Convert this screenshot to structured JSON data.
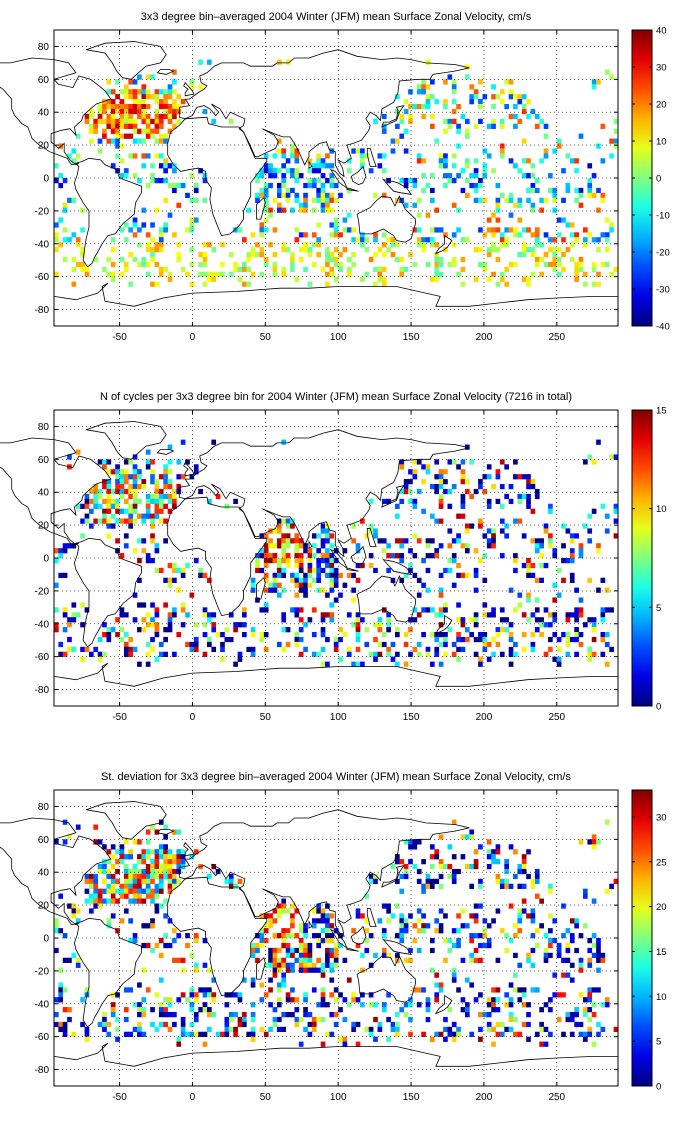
{
  "chart_data": [
    {
      "type": "heatmap",
      "title": "3x3 degree bin–averaged 2004 Winter (JFM) mean Surface Zonal Velocity, cm/s",
      "xlabel": "",
      "ylabel": "",
      "xlim": [
        -95,
        292
      ],
      "ylim": [
        -90,
        90
      ],
      "x_ticks": [
        -50,
        0,
        50,
        100,
        150,
        200,
        250
      ],
      "y_ticks": [
        -80,
        -60,
        -40,
        -20,
        0,
        20,
        40,
        60,
        80
      ],
      "grid": true,
      "colorbar": {
        "colormap": "jet",
        "range": [
          -40,
          40
        ],
        "ticks": [
          -40,
          -30,
          -20,
          -10,
          0,
          10,
          20,
          30,
          40
        ]
      },
      "values": "3x3 degree bins of Surface Zonal Velocity (cm/s) over the oceans; approximate pattern reproduced",
      "pattern_seed": 11
    },
    {
      "type": "heatmap",
      "title": "N of cycles per 3x3 degree bin for 2004 Winter (JFM) mean Surface Zonal Velocity (7216 in total)",
      "xlabel": "",
      "ylabel": "",
      "xlim": [
        -95,
        292
      ],
      "ylim": [
        -90,
        90
      ],
      "x_ticks": [
        -50,
        0,
        50,
        100,
        150,
        200,
        250
      ],
      "y_ticks": [
        -80,
        -60,
        -40,
        -20,
        0,
        20,
        40,
        60,
        80
      ],
      "grid": true,
      "colorbar": {
        "colormap": "jet",
        "range": [
          0,
          15
        ],
        "ticks": [
          0,
          5,
          10,
          15
        ]
      },
      "total_cycles": 7216,
      "pattern_seed": 29
    },
    {
      "type": "heatmap",
      "title": "St. deviation for 3x3 degree bin–averaged 2004 Winter (JFM) mean Surface Zonal Velocity, cm/s",
      "xlabel": "",
      "ylabel": "",
      "xlim": [
        -95,
        292
      ],
      "ylim": [
        -90,
        90
      ],
      "x_ticks": [
        -50,
        0,
        50,
        100,
        150,
        200,
        250
      ],
      "y_ticks": [
        -80,
        -60,
        -40,
        -20,
        0,
        20,
        40,
        60,
        80
      ],
      "grid": true,
      "colorbar": {
        "colormap": "jet",
        "range": [
          0,
          33
        ],
        "ticks": [
          0,
          5,
          10,
          15,
          20,
          25,
          30
        ]
      },
      "pattern_seed": 47
    }
  ]
}
